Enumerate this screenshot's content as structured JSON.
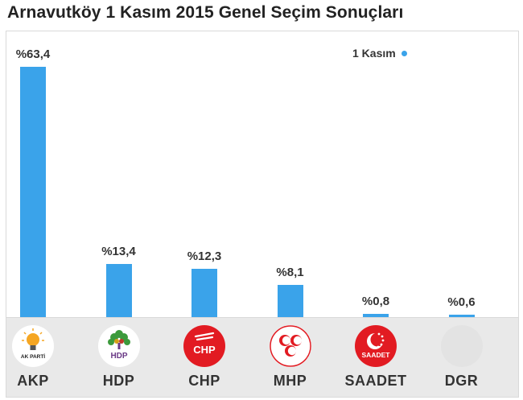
{
  "title": "Arnavutköy 1 Kasım 2015 Genel Seçim Sonuçları",
  "chart_data": {
    "type": "bar",
    "title": "Arnavutköy 1 Kasım 2015 Genel Seçim Sonuçları",
    "categories": [
      "AKP",
      "HDP",
      "CHP",
      "MHP",
      "SAADET",
      "DGR"
    ],
    "series": [
      {
        "name": "1 Kasım",
        "values": [
          63.4,
          13.4,
          12.3,
          8.1,
          0.8,
          0.6
        ],
        "labels": [
          "%63,4",
          "%13,4",
          "%12,3",
          "%8,1",
          "%0,8",
          "%0,6"
        ]
      }
    ],
    "ylim": [
      0,
      63.4
    ],
    "grid": false,
    "legend": "top-right",
    "colors": {
      "bar": "#3aa3ea"
    }
  },
  "logos": [
    {
      "party": "AKP",
      "text": "AK PARTİ",
      "icon": "akp-lightbulb-icon",
      "bg": "#ffffff",
      "color": "#f5a623"
    },
    {
      "party": "HDP",
      "text": "HDP",
      "icon": "hdp-tree-icon",
      "bg": "#ffffff",
      "color": "#6a3a86"
    },
    {
      "party": "CHP",
      "text": "CHP",
      "icon": "chp-six-arrows-icon",
      "bg": "#e21b22",
      "color": "#ffffff"
    },
    {
      "party": "MHP",
      "text": "",
      "icon": "mhp-three-crescents-icon",
      "bg": "#ffffff",
      "color": "#e21b22"
    },
    {
      "party": "SAADET",
      "text": "SAADET",
      "icon": "saadet-crescent-stars-icon",
      "bg": "#e21b22",
      "color": "#ffffff"
    },
    {
      "party": "DGR",
      "text": "",
      "icon": "dgr-blank-icon",
      "bg": "#e3e3e3",
      "color": "#e3e3e3"
    }
  ]
}
